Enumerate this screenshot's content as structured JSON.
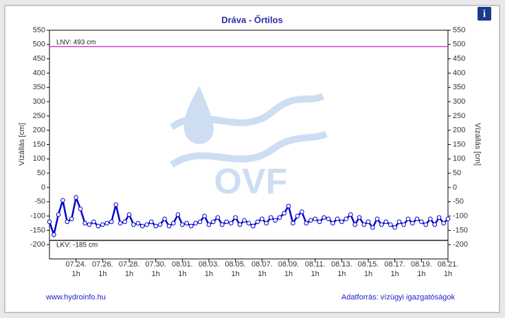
{
  "chart_data": {
    "type": "line",
    "title": "Dráva - Őrtilos",
    "y_label": "Vízállás [cm]",
    "watermark": "OVF",
    "source_left": "www.hydroinfo.hu",
    "source_right": "Adatforrás: vízügyi igazgatóságok",
    "info_icon": "i",
    "xlim": [
      22.04,
      52.04
    ],
    "xticks": [
      {
        "value": 24.04,
        "label": "07.24. 1h"
      },
      {
        "value": 26.04,
        "label": "07.26. 1h"
      },
      {
        "value": 28.04,
        "label": "07.28. 1h"
      },
      {
        "value": 30.04,
        "label": "07.30. 1h"
      },
      {
        "value": 32.04,
        "label": "08.01. 1h"
      },
      {
        "value": 34.04,
        "label": "08.03. 1h"
      },
      {
        "value": 36.04,
        "label": "08.05. 1h"
      },
      {
        "value": 38.04,
        "label": "08.07. 1h"
      },
      {
        "value": 40.04,
        "label": "08.09. 1h"
      },
      {
        "value": 42.04,
        "label": "08.11. 1h"
      },
      {
        "value": 44.04,
        "label": "08.13. 1h"
      },
      {
        "value": 46.04,
        "label": "08.15. 1h"
      },
      {
        "value": 48.04,
        "label": "08.17. 1h"
      },
      {
        "value": 50.04,
        "label": "08.19. 1h"
      },
      {
        "value": 52.04,
        "label": "08.21. 1h"
      }
    ],
    "ylim": [
      -250,
      550
    ],
    "yticks": [
      550,
      500,
      450,
      400,
      350,
      300,
      250,
      200,
      150,
      100,
      50,
      0,
      -50,
      -100,
      -150,
      -200
    ],
    "reference_lines": [
      {
        "label": "LNV: 493 cm",
        "value": 493,
        "color": "#d040d0"
      },
      {
        "label": "LKV: -185 cm",
        "value": -185,
        "color": "#202020"
      }
    ],
    "series": [
      {
        "color": "#0000cc",
        "x": [
          22.04,
          22.37,
          22.71,
          23.04,
          23.37,
          23.71,
          24.04,
          24.37,
          24.71,
          25.04,
          25.37,
          25.71,
          26.04,
          26.37,
          26.71,
          27.04,
          27.37,
          27.71,
          28.04,
          28.37,
          28.71,
          29.04,
          29.37,
          29.71,
          30.04,
          30.37,
          30.71,
          31.04,
          31.37,
          31.71,
          32.04,
          32.37,
          32.71,
          33.04,
          33.37,
          33.71,
          34.04,
          34.37,
          34.71,
          35.04,
          35.37,
          35.71,
          36.04,
          36.37,
          36.71,
          37.04,
          37.37,
          37.71,
          38.04,
          38.37,
          38.71,
          39.04,
          39.37,
          39.71,
          40.04,
          40.37,
          40.71,
          41.04,
          41.37,
          41.71,
          42.04,
          42.37,
          42.71,
          43.04,
          43.37,
          43.71,
          44.04,
          44.37,
          44.71,
          45.04,
          45.37,
          45.71,
          46.04,
          46.37,
          46.71,
          47.04,
          47.37,
          47.71,
          48.04,
          48.37,
          48.71,
          49.04,
          49.37,
          49.71,
          50.04,
          50.37,
          50.71,
          51.04,
          51.37,
          51.71,
          52.04
        ],
        "values": [
          -120,
          -165,
          -95,
          -45,
          -120,
          -110,
          -35,
          -75,
          -125,
          -130,
          -120,
          -135,
          -130,
          -125,
          -120,
          -60,
          -125,
          -120,
          -95,
          -130,
          -125,
          -135,
          -130,
          -120,
          -135,
          -130,
          -110,
          -135,
          -125,
          -95,
          -130,
          -125,
          -135,
          -125,
          -120,
          -100,
          -130,
          -120,
          -105,
          -130,
          -120,
          -125,
          -105,
          -130,
          -115,
          -125,
          -135,
          -120,
          -110,
          -125,
          -105,
          -115,
          -105,
          -90,
          -65,
          -125,
          -100,
          -85,
          -125,
          -115,
          -110,
          -120,
          -105,
          -110,
          -125,
          -110,
          -120,
          -110,
          -95,
          -130,
          -105,
          -130,
          -120,
          -140,
          -110,
          -130,
          -120,
          -130,
          -140,
          -120,
          -130,
          -110,
          -125,
          -110,
          -120,
          -130,
          -110,
          -130,
          -105,
          -125,
          -110
        ]
      }
    ]
  }
}
